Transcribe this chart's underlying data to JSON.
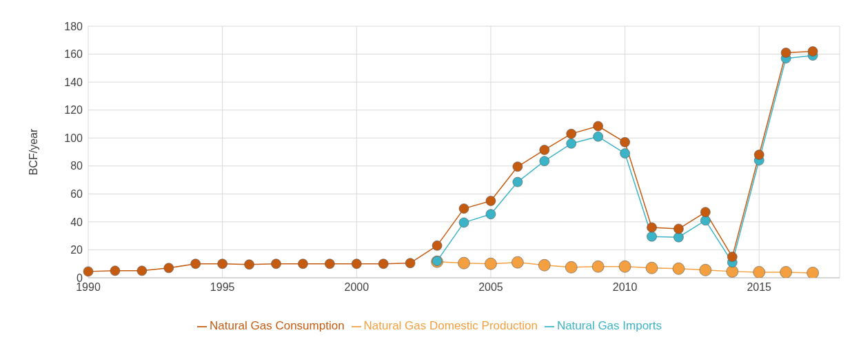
{
  "chart_data": {
    "type": "line",
    "ylabel": "BCF/year",
    "x": [
      1990,
      1991,
      1992,
      1993,
      1994,
      1995,
      1996,
      1997,
      1998,
      1999,
      2000,
      2001,
      2002,
      2003,
      2004,
      2005,
      2006,
      2007,
      2008,
      2009,
      2010,
      2011,
      2012,
      2013,
      2014,
      2015,
      2016,
      2017
    ],
    "series": [
      {
        "name": "Natural Gas Domestic Production",
        "color": "#f4a040",
        "values": [
          null,
          null,
          null,
          null,
          null,
          null,
          null,
          null,
          null,
          null,
          null,
          null,
          null,
          11.5,
          10.5,
          10,
          11,
          9,
          7.5,
          8,
          8,
          7,
          6.5,
          5.5,
          4.5,
          4,
          4,
          3.5
        ]
      },
      {
        "name": "Natural Gas Imports",
        "color": "#3cb4c8",
        "values": [
          null,
          null,
          null,
          null,
          null,
          null,
          null,
          null,
          null,
          null,
          null,
          null,
          null,
          12,
          39.5,
          45.5,
          68.5,
          83.5,
          96,
          101,
          89,
          29.5,
          29,
          41,
          11,
          84,
          157,
          159
        ]
      },
      {
        "name": "Natural Gas Consumption",
        "color": "#c55a11",
        "values": [
          4.5,
          5,
          5,
          7,
          10,
          10,
          9.5,
          10,
          10,
          10,
          10,
          10,
          10.5,
          23,
          49.5,
          55,
          79.5,
          91.5,
          103,
          108.5,
          97,
          36,
          35,
          47,
          15,
          88,
          161,
          162
        ]
      }
    ],
    "xlim": [
      1990,
      2018
    ],
    "xticks": [
      1990,
      1995,
      2000,
      2005,
      2010,
      2015
    ],
    "ylim": [
      0,
      180
    ],
    "yticks": [
      0,
      20,
      40,
      60,
      80,
      100,
      120,
      140,
      160,
      180
    ],
    "grid": true,
    "legend": "bottom",
    "marker": "circle",
    "line_style": "solid"
  }
}
